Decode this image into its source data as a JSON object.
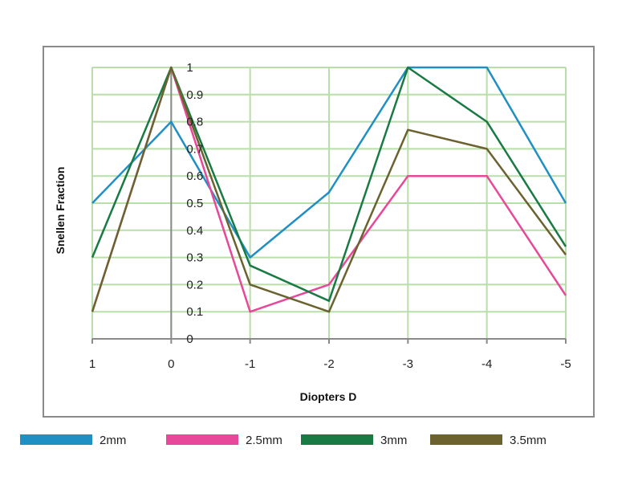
{
  "chart_data": {
    "type": "line",
    "title": "",
    "xlabel": "Diopters D",
    "ylabel": "Snellen Fraction",
    "x": [
      "1",
      "0",
      "-1",
      "-2",
      "-3",
      "-4",
      "-5"
    ],
    "yticks": [
      "0",
      "0.1",
      "0.2",
      "0.3",
      "0.4",
      "0.5",
      "0.6",
      "0.7",
      "0.8",
      "0.9",
      "1"
    ],
    "ylim": [
      0,
      1
    ],
    "grid": true,
    "legend_position": "bottom",
    "series": [
      {
        "name": "2mm",
        "color": "#1f8fc4",
        "values": [
          0.5,
          0.8,
          0.3,
          0.54,
          1.0,
          1.0,
          0.5
        ]
      },
      {
        "name": "2.5mm",
        "color": "#e8489a",
        "values": [
          0.1,
          1.0,
          0.1,
          0.2,
          0.6,
          0.6,
          0.16
        ]
      },
      {
        "name": "3mm",
        "color": "#1a7a44",
        "values": [
          0.3,
          1.0,
          0.27,
          0.14,
          1.0,
          0.8,
          0.34
        ]
      },
      {
        "name": "3.5mm",
        "color": "#6b6230",
        "values": [
          0.1,
          1.0,
          0.2,
          0.1,
          0.77,
          0.7,
          0.31
        ]
      }
    ]
  }
}
